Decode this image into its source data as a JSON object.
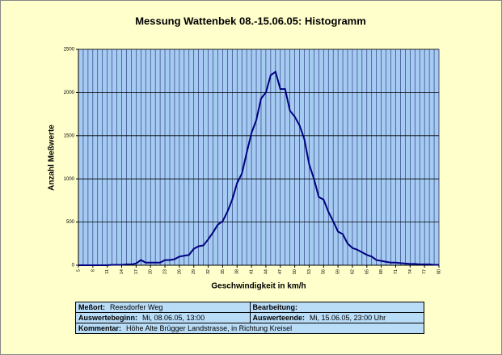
{
  "chart_data": {
    "type": "line",
    "title": "Messung Wattenbek 08.-15.06.05: Histogramm",
    "x_label": "Geschwindigkeit in km/h",
    "y_label": "Anzahl Meßwerte",
    "x": [
      5,
      6,
      7,
      8,
      9,
      10,
      11,
      12,
      13,
      14,
      15,
      16,
      17,
      18,
      19,
      20,
      21,
      22,
      23,
      24,
      25,
      26,
      27,
      28,
      29,
      30,
      31,
      32,
      33,
      34,
      35,
      36,
      37,
      38,
      39,
      40,
      41,
      42,
      43,
      44,
      45,
      46,
      47,
      48,
      49,
      50,
      51,
      52,
      53,
      54,
      55,
      56,
      57,
      58,
      59,
      60,
      61,
      62,
      63,
      64,
      65,
      66,
      67,
      68,
      69,
      70,
      71,
      72,
      73,
      74,
      75,
      76,
      77,
      78,
      79,
      80
    ],
    "values": [
      0,
      0,
      0,
      0,
      0,
      0,
      0,
      5,
      5,
      5,
      10,
      10,
      20,
      60,
      30,
      30,
      30,
      30,
      60,
      60,
      70,
      100,
      110,
      120,
      190,
      220,
      230,
      300,
      380,
      470,
      510,
      620,
      760,
      950,
      1060,
      1300,
      1530,
      1680,
      1930,
      2000,
      2200,
      2240,
      2040,
      2040,
      1790,
      1720,
      1620,
      1460,
      1170,
      1000,
      790,
      760,
      620,
      510,
      390,
      360,
      250,
      200,
      180,
      150,
      120,
      100,
      60,
      50,
      40,
      30,
      30,
      25,
      20,
      15,
      15,
      10,
      10,
      10,
      5,
      5
    ],
    "color": "#000080",
    "xlim": [
      5,
      80
    ],
    "xticks": [
      5,
      8,
      11,
      14,
      17,
      20,
      23,
      26,
      29,
      32,
      35,
      38,
      41,
      44,
      47,
      50,
      53,
      56,
      59,
      62,
      65,
      68,
      71,
      74,
      77,
      80
    ],
    "ylim": [
      0,
      2500
    ],
    "yticks": [
      0,
      500,
      1000,
      1500,
      2000,
      2500
    ],
    "grid": true
  },
  "info_table": {
    "rows": [
      [
        {
          "label": "Meßort:",
          "value": "Reesdorfer Weg"
        },
        {
          "label": "Bearbeitung:"
        }
      ],
      [
        {
          "label": "Auswertebeginn:",
          "value": "Mi, 08.06.05, 13:00"
        },
        {
          "label": "Auswerteende:",
          "value": "Mi, 15.06.05, 23:00 Uhr"
        }
      ],
      [
        {
          "label": "Kommentar:",
          "value": "Höhe Alte Brügger Landstrasse, in Richtung Kreisel"
        }
      ]
    ]
  }
}
